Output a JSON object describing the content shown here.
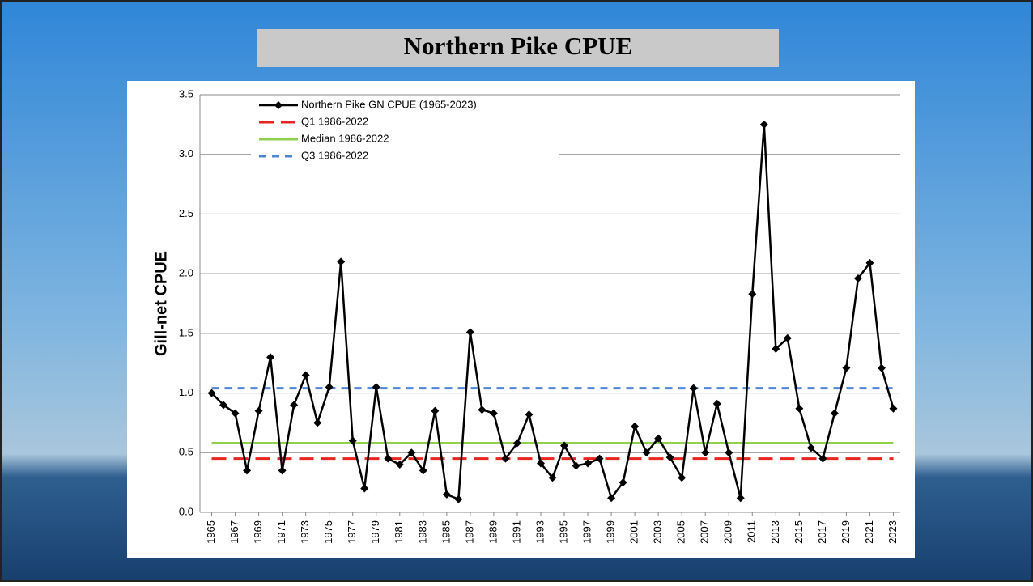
{
  "chart_data": {
    "type": "line",
    "title": "Northern Pike CPUE",
    "y_label": "Gill-net CPUE",
    "x": [
      1965,
      1966,
      1967,
      1968,
      1969,
      1970,
      1971,
      1972,
      1973,
      1974,
      1975,
      1976,
      1977,
      1978,
      1979,
      1980,
      1981,
      1982,
      1983,
      1984,
      1985,
      1986,
      1987,
      1988,
      1989,
      1990,
      1991,
      1992,
      1993,
      1994,
      1995,
      1996,
      1997,
      1998,
      1999,
      2000,
      2001,
      2002,
      2003,
      2004,
      2005,
      2006,
      2007,
      2008,
      2009,
      2010,
      2011,
      2012,
      2013,
      2014,
      2015,
      2016,
      2017,
      2018,
      2019,
      2020,
      2021,
      2022,
      2023
    ],
    "series": [
      {
        "name": "Northern Pike GN CPUE (1965-2023)",
        "color": "#000000",
        "values": [
          1.0,
          0.9,
          0.83,
          0.35,
          0.85,
          1.3,
          0.35,
          0.9,
          1.15,
          0.75,
          1.05,
          2.1,
          0.6,
          0.2,
          1.05,
          0.45,
          0.4,
          0.5,
          0.35,
          0.85,
          0.15,
          0.11,
          1.51,
          0.86,
          0.83,
          0.45,
          0.58,
          0.82,
          0.41,
          0.29,
          0.56,
          0.39,
          0.41,
          0.45,
          0.12,
          0.25,
          0.72,
          0.5,
          0.62,
          0.46,
          0.29,
          1.04,
          0.5,
          0.91,
          0.5,
          0.12,
          1.83,
          3.25,
          1.37,
          1.46,
          0.87,
          0.54,
          0.45,
          0.83,
          1.21,
          1.96,
          2.09,
          1.21,
          0.87
        ]
      }
    ],
    "reference_lines": [
      {
        "name": "Q1 1986-2022",
        "value": 0.45,
        "color": "#e8251f",
        "dash": "long"
      },
      {
        "name": "Median 1986-2022",
        "value": 0.58,
        "color": "#8fd14f",
        "dash": "solid"
      },
      {
        "name": "Q3 1986-2022",
        "value": 1.04,
        "color": "#4f86d6",
        "dash": "short"
      }
    ],
    "xlim": [
      1964,
      2024
    ],
    "xticks": [
      1965,
      1967,
      1969,
      1971,
      1973,
      1975,
      1977,
      1979,
      1981,
      1983,
      1985,
      1987,
      1989,
      1991,
      1993,
      1995,
      1997,
      1999,
      2001,
      2003,
      2005,
      2007,
      2009,
      2011,
      2013,
      2015,
      2017,
      2019,
      2021,
      2023
    ],
    "ylim": [
      0,
      3.5
    ],
    "yticks": [
      {
        "value": 0,
        "label": "0.0"
      },
      {
        "value": 0.5,
        "label": "0.5"
      },
      {
        "value": 1,
        "label": "1.0"
      },
      {
        "value": 1.5,
        "label": "1.5"
      },
      {
        "value": 2,
        "label": "2.0"
      },
      {
        "value": 2.5,
        "label": "2.5"
      },
      {
        "value": 3,
        "label": "3.0"
      },
      {
        "value": 3.5,
        "label": "3.5"
      }
    ],
    "grid": true,
    "legend": "top-left"
  }
}
